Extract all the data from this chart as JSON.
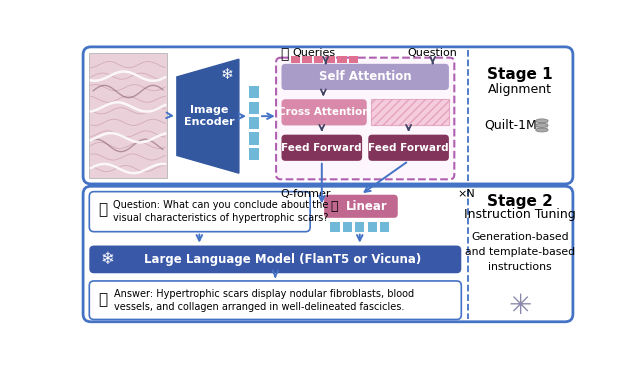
{
  "fig_width": 6.4,
  "fig_height": 3.65,
  "colors": {
    "image_encoder_blue": "#3358A0",
    "self_attention_purple": "#A99CC8",
    "cross_attention_pink": "#D98AAA",
    "feed_forward_maroon": "#82345A",
    "llm_blue": "#3A58A8",
    "linear_pink": "#C06890",
    "qformer_dashed_border": "#B060B0",
    "qformer_fill": "#FDF6FC",
    "token_blue": "#70B8D8",
    "token_pink": "#E07090",
    "border_blue": "#4472c4",
    "arrow_dark": "#444466",
    "hist_bg": "#EAD0D8",
    "hist_line": "#C8A0A8",
    "white": "#FFFFFF"
  },
  "stage1_label": "Stage 1",
  "stage1_sublabel": "Alignment",
  "quilt_label": "Quilt-1M",
  "stage2_label": "Stage 2",
  "stage2_sublabel": "Instruction Tuning",
  "stage2_sublabel2": "Generation-based\nand template-based\ninstructions",
  "image_encoder_label": "Image\nEncoder",
  "self_attention_label": "Self Attention",
  "cross_attention_label": "Cross Attention",
  "feed_forward1_label": "Feed Forward",
  "feed_forward2_label": "Feed Forward",
  "qformer_label": "Q-former",
  "xn_label": "×N",
  "queries_label": "Queries",
  "question_label": "Question",
  "linear_label": "Linear",
  "llm_label": "Large Language Model (FlanT5 or Vicuna)",
  "question_text": "Question: What can you conclude about the\nvisual characteristics of hypertrophic scars?",
  "answer_text": "Answer: Hypertrophic scars display nodular fibroblasts, blood\nvessels, and collagen arranged in well-delineated fascicles."
}
